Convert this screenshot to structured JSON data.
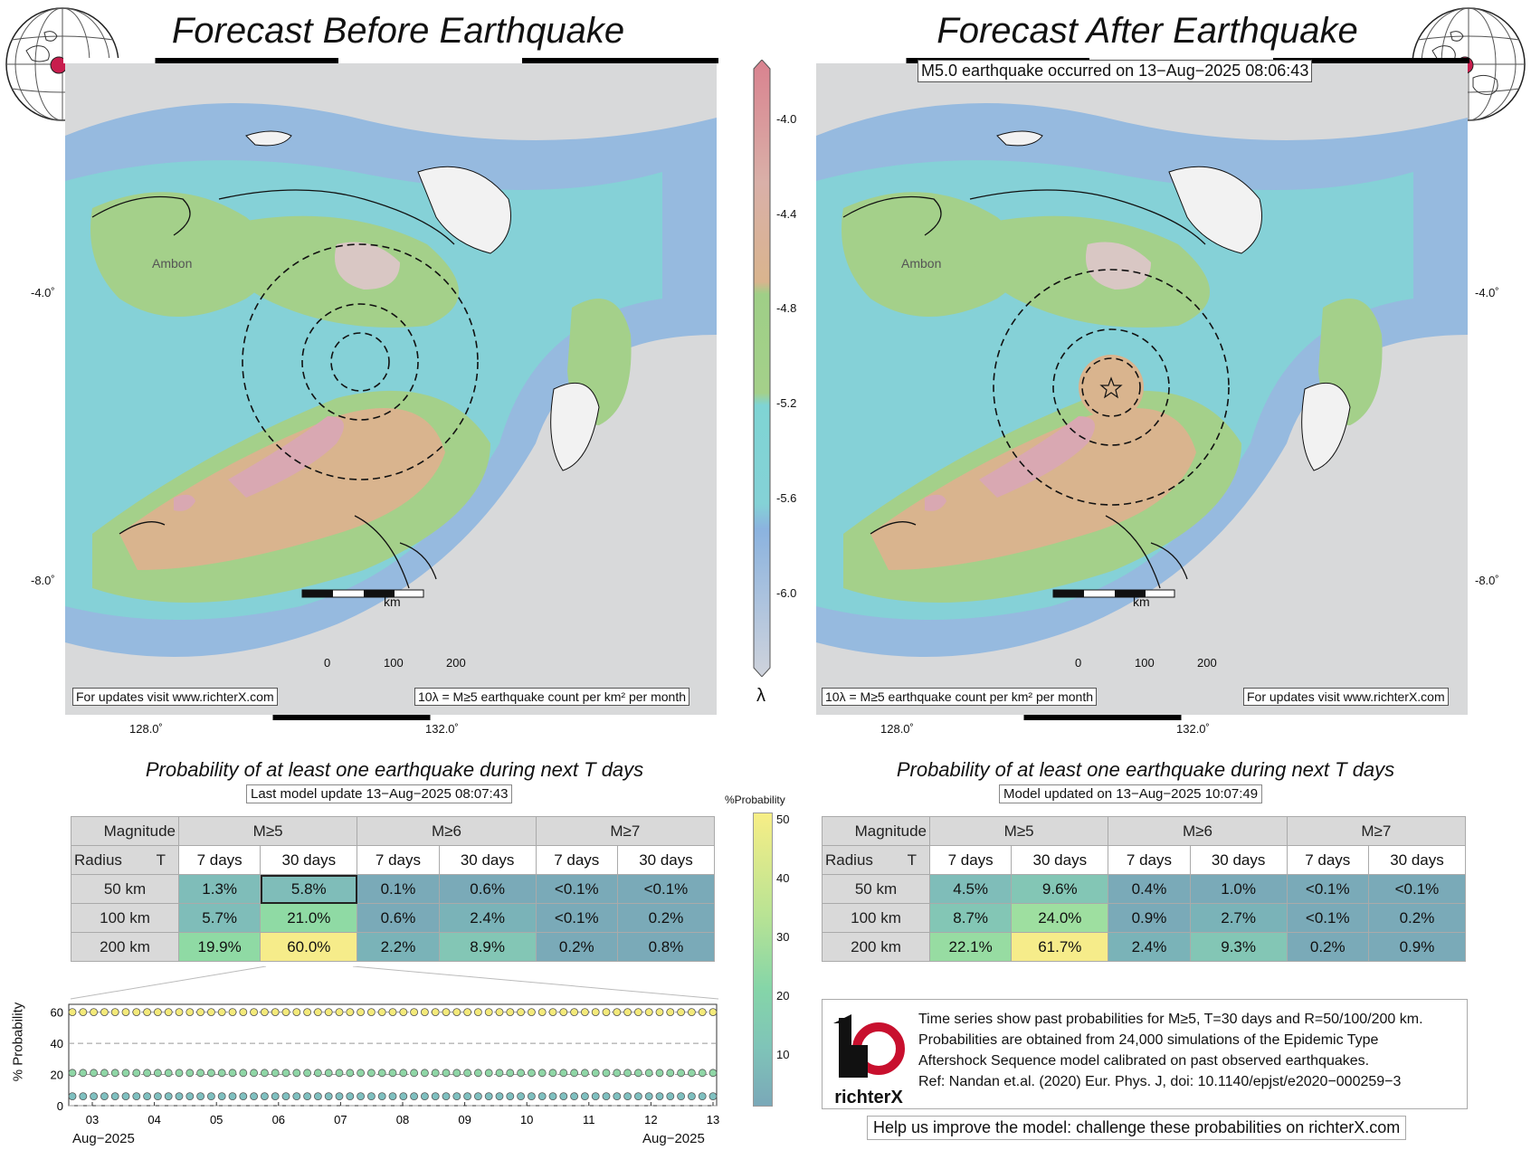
{
  "left_panel": {
    "title": "Forecast Before Earthquake",
    "place_label": "Ambon",
    "km_label": "km",
    "scale_ticks": [
      "0",
      "100",
      "200"
    ],
    "footer_url": "For updates visit www.richterX.com",
    "footer_units": "10λ = M≥5 earthquake count per km² per month",
    "lat_labels": [
      "-4.0˚",
      "-8.0˚"
    ],
    "lon_labels": [
      "128.0˚",
      "132.0˚"
    ]
  },
  "right_panel": {
    "title": "Forecast After Earthquake",
    "event_label": "M5.0 earthquake occurred on 13−Aug−2025 08:06:43",
    "place_label": "Ambon",
    "km_label": "km",
    "scale_ticks": [
      "0",
      "100",
      "200"
    ],
    "footer_url": "For updates visit www.richterX.com",
    "footer_units": "10λ = M≥5 earthquake count per km² per month",
    "lat_labels": [
      "-4.0˚",
      "-8.0˚"
    ],
    "lon_labels": [
      "128.0˚",
      "132.0˚"
    ]
  },
  "colorbar_lambda": {
    "ticks": [
      "-4.0",
      "-4.4",
      "-4.8",
      "-5.2",
      "-5.6",
      "-6.0"
    ],
    "symbol": "λ",
    "colors": [
      "#d98f9a",
      "#d9b48e",
      "#9fcf87",
      "#7fd4d4",
      "#8bb3df"
    ]
  },
  "colorbar_probability": {
    "title": "%Probability",
    "ticks": [
      "50",
      "40",
      "30",
      "20",
      "10"
    ]
  },
  "before_table": {
    "heading": "Probability of at least one earthquake during next T days",
    "update": "Last model update 13−Aug−2025 08:07:43",
    "corner_top": "Magnitude",
    "corner_bottom_left": "Radius",
    "corner_bottom_right": "T",
    "magnitudes": [
      "M≥5",
      "M≥6",
      "M≥7"
    ],
    "periods": [
      "7 days",
      "30 days",
      "7 days",
      "30 days",
      "7 days",
      "30 days"
    ],
    "rows": [
      {
        "radius": "50 km",
        "values": [
          "1.3%",
          "5.8%",
          "0.1%",
          "0.6%",
          "<0.1%",
          "<0.1%"
        ]
      },
      {
        "radius": "100 km",
        "values": [
          "5.7%",
          "21.0%",
          "0.6%",
          "2.4%",
          "<0.1%",
          "0.2%"
        ]
      },
      {
        "radius": "200 km",
        "values": [
          "19.9%",
          "60.0%",
          "2.2%",
          "8.9%",
          "0.2%",
          "0.8%"
        ]
      }
    ]
  },
  "after_table": {
    "heading": "Probability of at least one earthquake during next T days",
    "update": "Model updated on 13−Aug−2025 10:07:49",
    "corner_top": "Magnitude",
    "corner_bottom_left": "Radius",
    "corner_bottom_right": "T",
    "magnitudes": [
      "M≥5",
      "M≥6",
      "M≥7"
    ],
    "periods": [
      "7 days",
      "30 days",
      "7 days",
      "30 days",
      "7 days",
      "30 days"
    ],
    "rows": [
      {
        "radius": "50 km",
        "values": [
          "4.5%",
          "9.6%",
          "0.4%",
          "1.0%",
          "<0.1%",
          "<0.1%"
        ]
      },
      {
        "radius": "100 km",
        "values": [
          "8.7%",
          "24.0%",
          "0.9%",
          "2.7%",
          "<0.1%",
          "0.2%"
        ]
      },
      {
        "radius": "200 km",
        "values": [
          "22.1%",
          "61.7%",
          "2.4%",
          "9.3%",
          "0.2%",
          "0.9%"
        ]
      }
    ]
  },
  "chart_data": {
    "type": "scatter",
    "ylabel": "% Probability",
    "ylim": [
      0,
      65
    ],
    "y_ticks": [
      "0",
      "20",
      "40",
      "60"
    ],
    "x_ticks": [
      "03",
      "04",
      "05",
      "06",
      "07",
      "08",
      "09",
      "10",
      "11",
      "12",
      "13"
    ],
    "x_month_left": "Aug−2025",
    "x_month_right": "Aug−2025",
    "series": [
      {
        "values": [
          60,
          60,
          60,
          60,
          60,
          60,
          60,
          60,
          60,
          60,
          60,
          60,
          60,
          60,
          60,
          60,
          60,
          60,
          60,
          60,
          60,
          60,
          60,
          60,
          60,
          60,
          60,
          60,
          60,
          60,
          60,
          60,
          60,
          60,
          60,
          60,
          60,
          60,
          60,
          60,
          60,
          60,
          60,
          60,
          60,
          60,
          60,
          60,
          60,
          60,
          60,
          60,
          60,
          60,
          60,
          60,
          60,
          60,
          60,
          60,
          60
        ]
      },
      {
        "values": [
          21,
          21,
          21,
          21,
          21,
          21,
          21,
          21,
          21,
          21,
          21,
          21,
          21,
          21,
          21,
          21,
          21,
          21,
          21,
          21,
          21,
          21,
          21,
          21,
          21,
          21,
          21,
          21,
          21,
          21,
          21,
          21,
          21,
          21,
          21,
          21,
          21,
          21,
          21,
          21,
          21,
          21,
          21,
          21,
          21,
          21,
          21,
          21,
          21,
          21,
          21,
          21,
          21,
          21,
          21,
          21,
          21,
          21,
          21,
          21,
          21
        ]
      },
      {
        "values": [
          6,
          6,
          6,
          6,
          6,
          6,
          6,
          6,
          6,
          6,
          6,
          6,
          6,
          6,
          6,
          6,
          6,
          6,
          6,
          6,
          6,
          6,
          6,
          6,
          6,
          6,
          6,
          6,
          6,
          6,
          6,
          6,
          6,
          6,
          6,
          6,
          6,
          6,
          6,
          6,
          6,
          6,
          6,
          6,
          6,
          6,
          6,
          6,
          6,
          6,
          6,
          6,
          6,
          6,
          6,
          6,
          6,
          6,
          6,
          6,
          6
        ]
      }
    ]
  },
  "info_box": {
    "logo_text": "richterX",
    "lines": [
      "Time series show past probabilities for M≥5, T=30 days and R=50/100/200 km.",
      "Probabilities are obtained from 24,000 simulations of the Epidemic Type",
      "Aftershock Sequence model calibrated on past observed earthquakes.",
      "Ref: Nandan et.al. (2020) Eur. Phys. J, doi: 10.1140/epjst/e2020−000259−3"
    ]
  },
  "help_text": "Help us improve the model: challenge these probabilities on richterX.com"
}
